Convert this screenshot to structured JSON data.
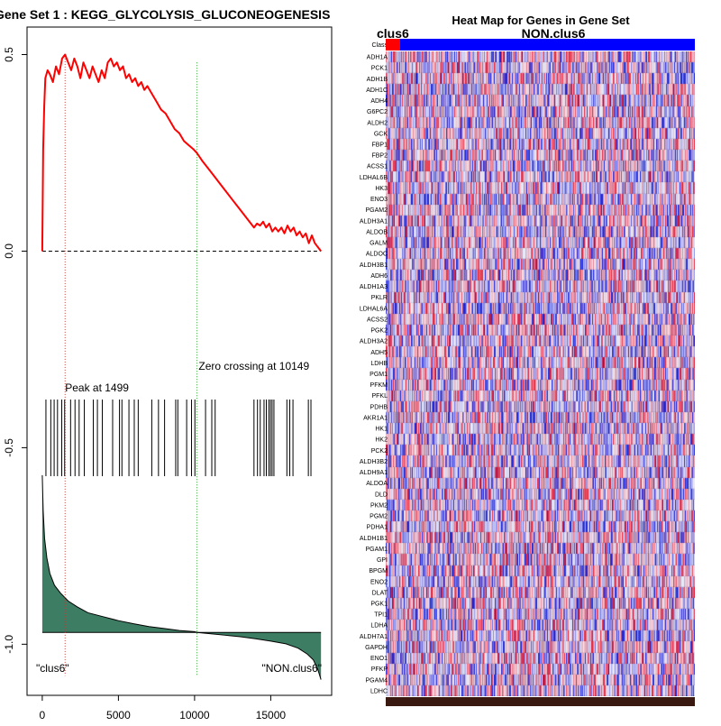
{
  "chart_data": [
    {
      "type": "line",
      "title": "Gene Set  1 : KEGG_GLYCOLYSIS_GLUCONEOGENESIS",
      "xlabel": "",
      "ylabel": "",
      "xlim": [
        -1000,
        19000
      ],
      "ylim": [
        -1.13,
        0.57
      ],
      "x_ticks": [
        {
          "value": 0,
          "label": "0"
        },
        {
          "value": 5000,
          "label": "5000"
        },
        {
          "value": 10000,
          "label": "10000"
        },
        {
          "value": 15000,
          "label": "15000"
        }
      ],
      "y_ticks": [
        {
          "value": 0.5,
          "label": "0.5"
        },
        {
          "value": 0.0,
          "label": "0.0"
        },
        {
          "value": -0.5,
          "label": "-0.5"
        },
        {
          "value": -1.0,
          "label": "-1.0"
        }
      ],
      "series": [
        {
          "name": "Running enrichment score",
          "color": "#ff0000",
          "x": [
            0,
            60,
            130,
            200,
            350,
            500,
            700,
            900,
            1100,
            1300,
            1499,
            1700,
            1900,
            2100,
            2300,
            2500,
            2700,
            2900,
            3100,
            3300,
            3500,
            3700,
            3900,
            4100,
            4300,
            4500,
            4700,
            4900,
            5100,
            5300,
            5500,
            5700,
            5900,
            6100,
            6300,
            6500,
            6700,
            6900,
            7200,
            7500,
            7800,
            8100,
            8400,
            8700,
            9000,
            9300,
            9600,
            9900,
            10149,
            10500,
            10900,
            11300,
            11700,
            12100,
            12500,
            12900,
            13300,
            13700,
            13900,
            14100,
            14300,
            14500,
            14700,
            14900,
            15100,
            15300,
            15500,
            15700,
            15900,
            16100,
            16300,
            16500,
            16700,
            16900,
            17100,
            17300,
            17500,
            17700,
            17900,
            18100,
            18300
          ],
          "y": [
            0.0,
            0.26,
            0.37,
            0.44,
            0.46,
            0.45,
            0.43,
            0.47,
            0.45,
            0.49,
            0.5,
            0.48,
            0.46,
            0.49,
            0.47,
            0.44,
            0.48,
            0.46,
            0.44,
            0.47,
            0.45,
            0.43,
            0.46,
            0.44,
            0.48,
            0.49,
            0.47,
            0.48,
            0.46,
            0.47,
            0.44,
            0.45,
            0.43,
            0.44,
            0.42,
            0.43,
            0.41,
            0.42,
            0.4,
            0.38,
            0.36,
            0.35,
            0.33,
            0.31,
            0.3,
            0.28,
            0.27,
            0.26,
            0.25,
            0.23,
            0.21,
            0.19,
            0.17,
            0.15,
            0.13,
            0.11,
            0.09,
            0.07,
            0.06,
            0.07,
            0.065,
            0.075,
            0.06,
            0.07,
            0.05,
            0.06,
            0.05,
            0.06,
            0.045,
            0.065,
            0.05,
            0.06,
            0.04,
            0.05,
            0.035,
            0.045,
            0.02,
            0.04,
            0.02,
            0.01,
            0.0
          ]
        },
        {
          "name": "Ranked list metric",
          "color": "#3c7d64",
          "baseline": -0.97,
          "x": [
            0,
            60,
            150,
            300,
            500,
            800,
            1200,
            1700,
            2300,
            3000,
            4000,
            5000,
            6000,
            7000,
            8000,
            9000,
            10000,
            10149,
            11000,
            12000,
            13000,
            14000,
            15000,
            16000,
            16800,
            17400,
            17800,
            18100,
            18300
          ],
          "y": [
            -0.57,
            -0.66,
            -0.73,
            -0.78,
            -0.82,
            -0.85,
            -0.87,
            -0.89,
            -0.905,
            -0.92,
            -0.93,
            -0.94,
            -0.948,
            -0.955,
            -0.96,
            -0.965,
            -0.968,
            -0.97,
            -0.973,
            -0.977,
            -0.981,
            -0.986,
            -0.992,
            -0.999,
            -1.01,
            -1.025,
            -1.04,
            -1.065,
            -1.09
          ]
        }
      ],
      "gene_hits": [
        240,
        560,
        780,
        1000,
        1280,
        1470,
        1860,
        2150,
        2420,
        2760,
        3350,
        3620,
        3940,
        4620,
        5070,
        5230,
        5690,
        6040,
        6300,
        7190,
        7630,
        8030,
        8760,
        8900,
        9480,
        9800,
        10020,
        10720,
        11130,
        11350,
        13900,
        14130,
        14310,
        14560,
        14710,
        14870,
        14980,
        15090,
        15210,
        16060,
        16250,
        16460,
        17470,
        17640
      ],
      "peak": {
        "x": 1499,
        "label": "Peak at 1499",
        "color": "#cc3333"
      },
      "zero_crossing": {
        "x": 10149,
        "label": "Zero crossing at 10149",
        "color": "#22aa22"
      },
      "baseline_y": 0.0,
      "left_class_label": "\"clus6\"",
      "right_class_label": "\"NON.clus6\""
    },
    {
      "type": "heatmap",
      "title": "Heat Map for Genes in Gene Set",
      "class_label_left": "clus6",
      "class_label_right": "NON.clus6",
      "class_bar_label": "Class",
      "class_colors": {
        "clus6": "#ff0000",
        "NON.clus6": "#0000ff"
      },
      "color_scale": {
        "low": "#1a24d6",
        "mid": "#eeeef6",
        "high": "#e8243a"
      },
      "rows": [
        "ADH1A",
        "PCK1",
        "ADH1B",
        "ADH1C",
        "ADH4",
        "G6PC2",
        "ALDH2",
        "GCK",
        "FBP1",
        "FBP2",
        "ACSS1",
        "LDHAL6B",
        "HK3",
        "ENO3",
        "PGAM2",
        "ALDH3A1",
        "ALDOB",
        "GALM",
        "ALDOC",
        "ALDH3B1",
        "ADH6",
        "ALDH1A3",
        "PKLR",
        "LDHAL6A",
        "ACSS2",
        "PGK2",
        "ALDH3A2",
        "ADH5",
        "LDHB",
        "PGM1",
        "PFKM",
        "PFKL",
        "PDHB",
        "AKR1A1",
        "HK1",
        "HK2",
        "PCK2",
        "ALDH3B2",
        "ALDH9A1",
        "ALDOA",
        "DLD",
        "PKM2",
        "PGM2",
        "PDHA1",
        "ALDH1B1",
        "PGAM1",
        "GPI",
        "BPGM",
        "ENO2",
        "DLAT",
        "PGK1",
        "TPI1",
        "LDHA",
        "ALDH7A1",
        "GAPDH",
        "ENO1",
        "PFKP",
        "PGAM4",
        "LDHC"
      ]
    }
  ]
}
